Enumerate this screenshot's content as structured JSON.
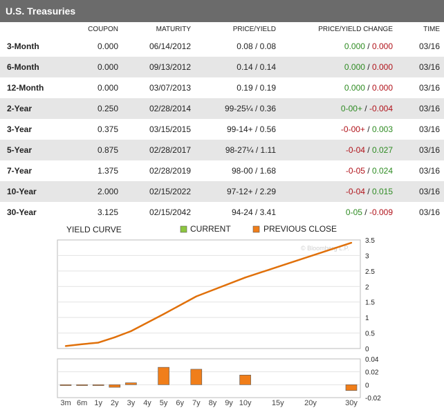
{
  "panel": {
    "title": "U.S. Treasuries"
  },
  "columns": [
    "COUPON",
    "MATURITY",
    "PRICE/YIELD",
    "PRICE/YIELD CHANGE",
    "TIME"
  ],
  "rows": [
    {
      "name": "3-Month",
      "coupon": "0.000",
      "maturity": "06/14/2012",
      "price_yield": "0.08 / 0.08",
      "chg_price": "0.000",
      "chg_price_dir": "up",
      "chg_yield": "0.000",
      "chg_yield_dir": "down",
      "time": "03/16"
    },
    {
      "name": "6-Month",
      "coupon": "0.000",
      "maturity": "09/13/2012",
      "price_yield": "0.14 / 0.14",
      "chg_price": "0.000",
      "chg_price_dir": "up",
      "chg_yield": "0.000",
      "chg_yield_dir": "down",
      "time": "03/16"
    },
    {
      "name": "12-Month",
      "coupon": "0.000",
      "maturity": "03/07/2013",
      "price_yield": "0.19 / 0.19",
      "chg_price": "0.000",
      "chg_price_dir": "up",
      "chg_yield": "0.000",
      "chg_yield_dir": "down",
      "time": "03/16"
    },
    {
      "name": "2-Year",
      "coupon": "0.250",
      "maturity": "02/28/2014",
      "price_yield": "99-25¼ / 0.36",
      "chg_price": "0-00+",
      "chg_price_dir": "up",
      "chg_yield": "-0.004",
      "chg_yield_dir": "down",
      "time": "03/16"
    },
    {
      "name": "3-Year",
      "coupon": "0.375",
      "maturity": "03/15/2015",
      "price_yield": "99-14+ / 0.56",
      "chg_price": "-0-00+",
      "chg_price_dir": "down",
      "chg_yield": "0.003",
      "chg_yield_dir": "up",
      "time": "03/16"
    },
    {
      "name": "5-Year",
      "coupon": "0.875",
      "maturity": "02/28/2017",
      "price_yield": "98-27¼ / 1.11",
      "chg_price": "-0-04",
      "chg_price_dir": "down",
      "chg_yield": "0.027",
      "chg_yield_dir": "up",
      "time": "03/16"
    },
    {
      "name": "7-Year",
      "coupon": "1.375",
      "maturity": "02/28/2019",
      "price_yield": "98-00 / 1.68",
      "chg_price": "-0-05",
      "chg_price_dir": "down",
      "chg_yield": "0.024",
      "chg_yield_dir": "up",
      "time": "03/16"
    },
    {
      "name": "10-Year",
      "coupon": "2.000",
      "maturity": "02/15/2022",
      "price_yield": "97-12+ / 2.29",
      "chg_price": "-0-04",
      "chg_price_dir": "down",
      "chg_yield": "0.015",
      "chg_yield_dir": "up",
      "time": "03/16"
    },
    {
      "name": "30-Year",
      "coupon": "3.125",
      "maturity": "02/15/2042",
      "price_yield": "94-24 / 3.41",
      "chg_price": "0-05",
      "chg_price_dir": "up",
      "chg_yield": "-0.009",
      "chg_yield_dir": "down",
      "time": "03/16"
    }
  ],
  "colors": {
    "up": "#2e8b22",
    "down": "#b0121a",
    "current": "#8cc63f",
    "previous": "#f07e1a",
    "line": "#e0700a",
    "header_bg": "#6b6b6b",
    "alt_row": "#e6e6e6"
  },
  "chart_data": [
    {
      "type": "line",
      "title": "YIELD CURVE",
      "legend": [
        {
          "label": "CURRENT",
          "color": "#8cc63f"
        },
        {
          "label": "PREVIOUS CLOSE",
          "color": "#f07e1a"
        }
      ],
      "legend_position": "top",
      "watermark": "© Bloomberg L.P.",
      "x_positions": [
        0,
        1,
        2,
        3,
        4,
        5,
        6,
        7,
        8,
        9,
        10,
        12,
        14,
        17
      ],
      "x_tick_labels": [
        "3m",
        "6m",
        "1y",
        "2y",
        "3y",
        "4y",
        "5y",
        "6y",
        "7y",
        "8y",
        "9y",
        "10y",
        "15y",
        "20y",
        "30y"
      ],
      "x_tick_positions": [
        0,
        1,
        2,
        3,
        4,
        5,
        6,
        7,
        8,
        9,
        10,
        11,
        13,
        15,
        17.5
      ],
      "points_x": [
        "3m",
        "6m",
        "1y",
        "2y",
        "3y",
        "5y",
        "7y",
        "10y",
        "30y"
      ],
      "points_pos": [
        0,
        1,
        2,
        3,
        4,
        6,
        8,
        11,
        17.5
      ],
      "points_y": [
        0.08,
        0.14,
        0.19,
        0.36,
        0.56,
        1.11,
        1.68,
        2.29,
        3.41
      ],
      "y_ticks": [
        "0",
        "0.5",
        "1",
        "1.5",
        "2",
        "2.5",
        "3",
        "3.5"
      ],
      "ylim": [
        0,
        3.5
      ],
      "grid": true,
      "y_axis_side": "right"
    },
    {
      "type": "bar",
      "title": "",
      "categories": [
        "3m",
        "6m",
        "1y",
        "2y",
        "3y",
        "5y",
        "7y",
        "10y",
        "30y"
      ],
      "positions": [
        0,
        1,
        2,
        3,
        4,
        6,
        8,
        11,
        17.5
      ],
      "values": [
        0.0,
        0.0,
        0.0,
        -0.004,
        0.003,
        0.027,
        0.024,
        0.015,
        -0.009
      ],
      "y_ticks": [
        "0.04",
        "0.02",
        "0",
        "-0.02"
      ],
      "ylim": [
        -0.02,
        0.04
      ],
      "grid": true,
      "y_axis_side": "right"
    }
  ]
}
